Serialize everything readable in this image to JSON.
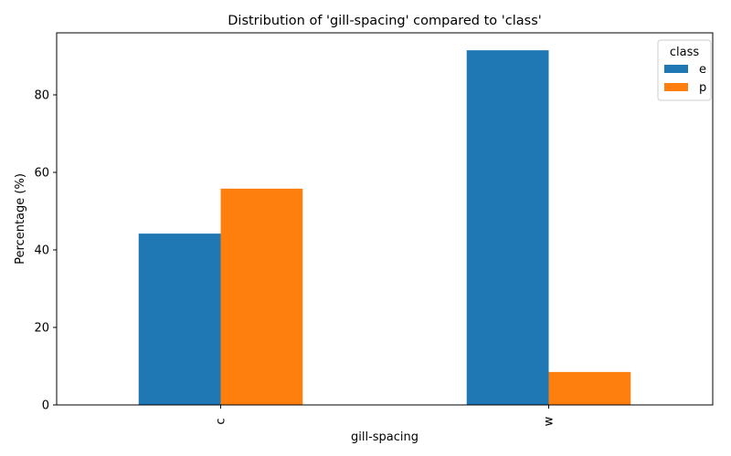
{
  "chart_data": {
    "type": "bar",
    "title": "Distribution of 'gill-spacing' compared to 'class'",
    "xlabel": "gill-spacing",
    "ylabel": "Percentage (%)",
    "categories": [
      "c",
      "w"
    ],
    "series": [
      {
        "name": "e",
        "color": "#1f77b4",
        "values": [
          44.2,
          91.5
        ]
      },
      {
        "name": "p",
        "color": "#ff7f0e",
        "values": [
          55.8,
          8.5
        ]
      }
    ],
    "ylim": [
      0,
      96
    ],
    "yticks": [
      0,
      20,
      40,
      60,
      80
    ],
    "legend": {
      "title": "class",
      "position": "top-right"
    },
    "grid": false
  }
}
